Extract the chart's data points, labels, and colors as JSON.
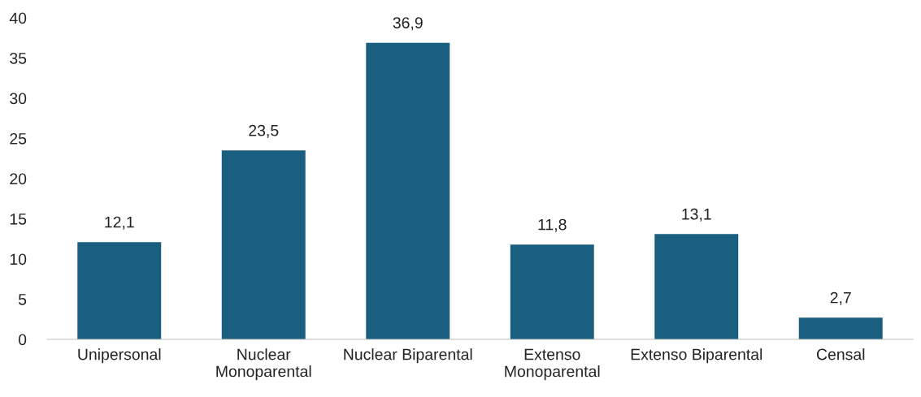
{
  "chart_data": {
    "type": "bar",
    "categories": [
      "Unipersonal",
      "Nuclear\nMonoparental",
      "Nuclear Biparental",
      "Extenso\nMonoparental",
      "Extenso Biparental",
      "Censal"
    ],
    "values": [
      12.1,
      23.5,
      36.9,
      11.8,
      13.1,
      2.7
    ],
    "value_labels": [
      "12,1",
      "23,5",
      "36,9",
      "11,8",
      "13,1",
      "2,7"
    ],
    "color": "#1a5f80",
    "ylim": [
      0,
      40
    ],
    "yticks": [
      0,
      5,
      10,
      15,
      20,
      25,
      30,
      35,
      40
    ],
    "grid": false,
    "legend": false
  }
}
